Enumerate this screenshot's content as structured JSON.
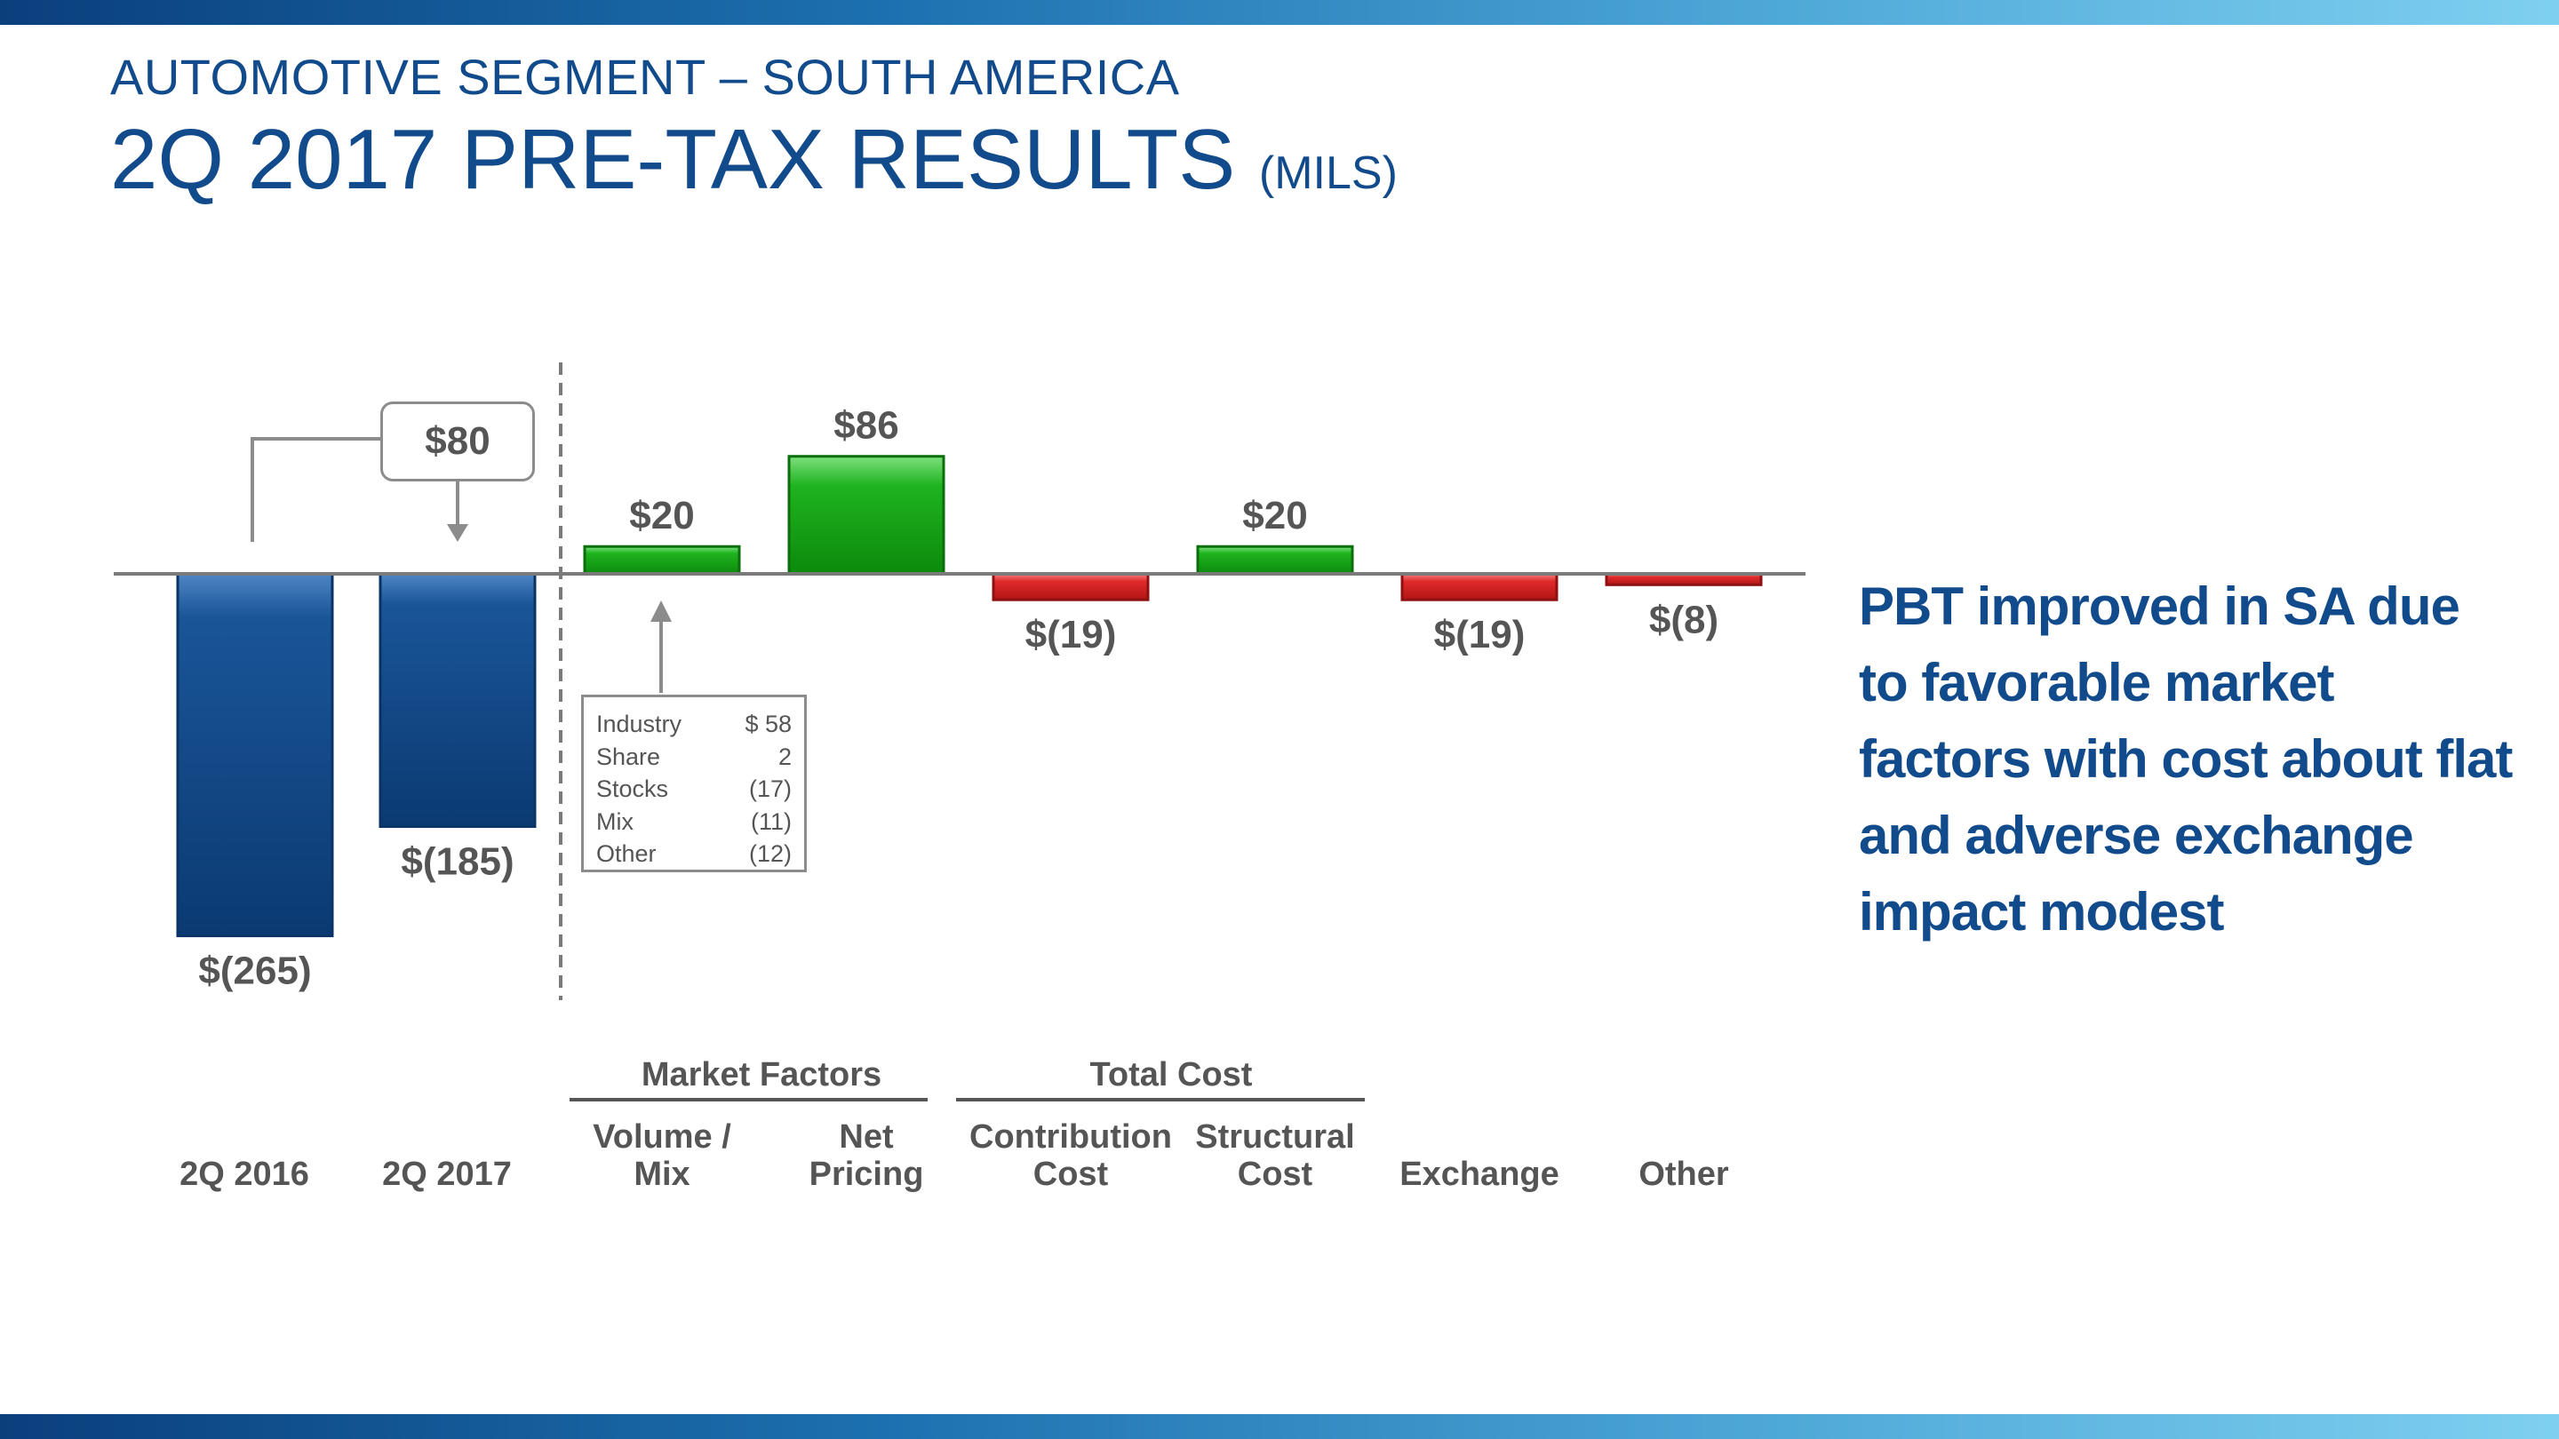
{
  "header": {
    "subtitle": "AUTOMOTIVE SEGMENT – SOUTH AMERICA",
    "title": "2Q 2017 PRE-TAX RESULTS",
    "title_unit": "(MILS)"
  },
  "commentary": "PBT improved in SA due to favorable market factors with cost about flat and adverse exchange impact modest",
  "improvement_callout": "$80",
  "volume_mix_breakdown": [
    {
      "label": "Industry",
      "value": "$ 58"
    },
    {
      "label": "Share",
      "value": "2"
    },
    {
      "label": "Stocks",
      "value": "(17)"
    },
    {
      "label": "Mix",
      "value": "(11)"
    },
    {
      "label": "Other",
      "value": "(12)"
    }
  ],
  "group_labels": [
    {
      "text": "Market Factors"
    },
    {
      "text": "Total Cost"
    }
  ],
  "colors": {
    "title": "#124b8c",
    "total_bar": "#0f4683",
    "positive_bar": "#16a616",
    "negative_bar": "#d92b2b",
    "label_text": "#555555"
  },
  "chart_data": {
    "type": "bar",
    "subtype": "waterfall",
    "unit": "$ millions",
    "categories": [
      [
        "2Q 2016"
      ],
      [
        "2Q 2017"
      ],
      [
        "Volume /",
        "Mix"
      ],
      [
        "Net",
        "Pricing"
      ],
      [
        "Contribution",
        "Cost"
      ],
      [
        "Structural",
        "Cost"
      ],
      [
        "Exchange"
      ],
      [
        "Other"
      ]
    ],
    "values": [
      -265,
      -185,
      20,
      86,
      -19,
      20,
      -19,
      -8
    ],
    "kinds": [
      "total",
      "total",
      "change",
      "change",
      "change",
      "change",
      "change",
      "change"
    ],
    "labels": [
      "$(265)",
      "$(185)",
      "$20",
      "$86",
      "$(19)",
      "$20",
      "$(19)",
      "$(8)"
    ]
  }
}
